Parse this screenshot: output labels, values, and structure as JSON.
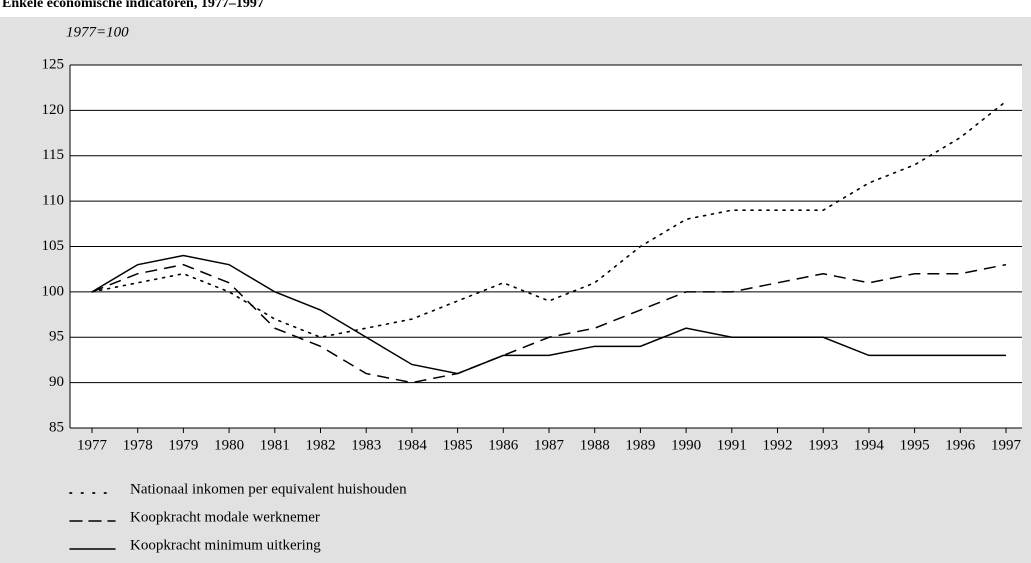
{
  "chart_data": {
    "type": "line",
    "title": "Enkele economische indicatoren, 1977–1997",
    "y_label": "1977=100",
    "categories": [
      "1977",
      "1978",
      "1979",
      "1980",
      "1981",
      "1982",
      "1983",
      "1984",
      "1985",
      "1986",
      "1987",
      "1988",
      "1989",
      "1990",
      "1991",
      "1992",
      "1993",
      "1994",
      "1995",
      "1996",
      "1997"
    ],
    "series": [
      {
        "name": "Nationaal inkomen per equivalent huishouden",
        "color": "#000000",
        "dash": "dotted",
        "values": [
          100,
          101,
          102,
          100,
          97,
          95,
          96,
          97,
          99,
          101,
          99,
          101,
          105,
          108,
          109,
          109,
          109,
          112,
          114,
          117,
          121
        ]
      },
      {
        "name": "Koopkracht modale werknemer",
        "color": "#000000",
        "dash": "dashed",
        "values": [
          100,
          102,
          103,
          101,
          96,
          94,
          91,
          90,
          91,
          93,
          95,
          96,
          98,
          100,
          100,
          101,
          102,
          101,
          102,
          102,
          103
        ]
      },
      {
        "name": "Koopkracht minimum uitkering",
        "color": "#000000",
        "dash": "solid",
        "values": [
          100,
          103,
          104,
          103,
          100,
          98,
          95,
          92,
          91,
          93,
          93,
          94,
          94,
          96,
          95,
          95,
          95,
          93,
          93,
          93,
          93
        ]
      }
    ],
    "ylim": [
      85,
      125
    ],
    "yticks": [
      85,
      90,
      95,
      100,
      105,
      110,
      115,
      120,
      125
    ],
    "grid": true
  }
}
